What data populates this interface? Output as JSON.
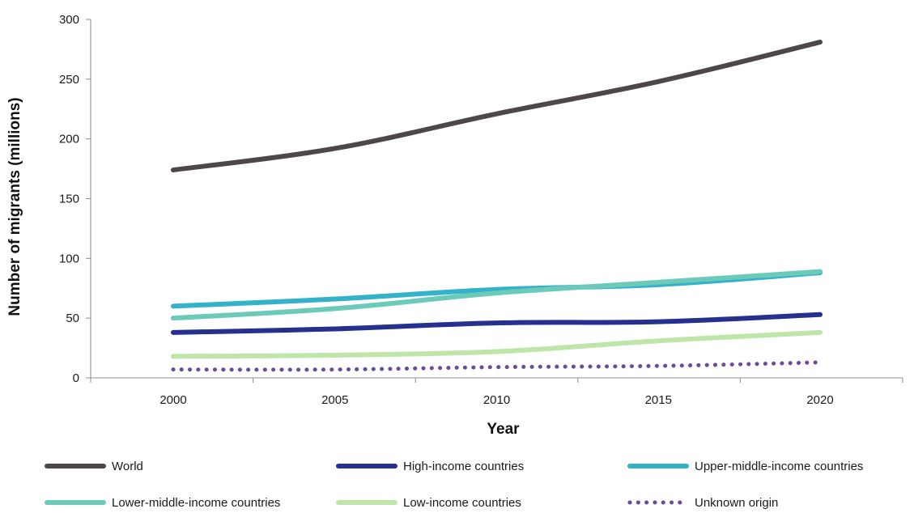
{
  "chart_data": {
    "type": "line",
    "title": "",
    "xlabel": "Year",
    "ylabel": "Number of migrants (millions)",
    "x": [
      2000,
      2005,
      2010,
      2015,
      2020
    ],
    "ylim": [
      0,
      300
    ],
    "yticks": [
      0,
      50,
      100,
      150,
      200,
      250,
      300
    ],
    "grid": false,
    "legend_position": "bottom",
    "series": [
      {
        "name": "World",
        "values": [
          174,
          192,
          221,
          248,
          281
        ],
        "color": "#4d4749",
        "style": "solid"
      },
      {
        "name": "High-income countries",
        "values": [
          38,
          41,
          46,
          47,
          53
        ],
        "color": "#25308f",
        "style": "solid"
      },
      {
        "name": "Upper-middle-income countries",
        "values": [
          60,
          66,
          74,
          78,
          88
        ],
        "color": "#33b2c9",
        "style": "solid"
      },
      {
        "name": "Lower-middle-income countries",
        "values": [
          50,
          58,
          71,
          80,
          89
        ],
        "color": "#6ccaba",
        "style": "solid"
      },
      {
        "name": "Low-income countries",
        "values": [
          18,
          19,
          22,
          31,
          38
        ],
        "color": "#bfe6a9",
        "style": "solid"
      },
      {
        "name": "Unknown origin",
        "values": [
          7,
          7,
          9,
          10,
          13
        ],
        "color": "#6a4c9c",
        "style": "dotted"
      }
    ]
  }
}
